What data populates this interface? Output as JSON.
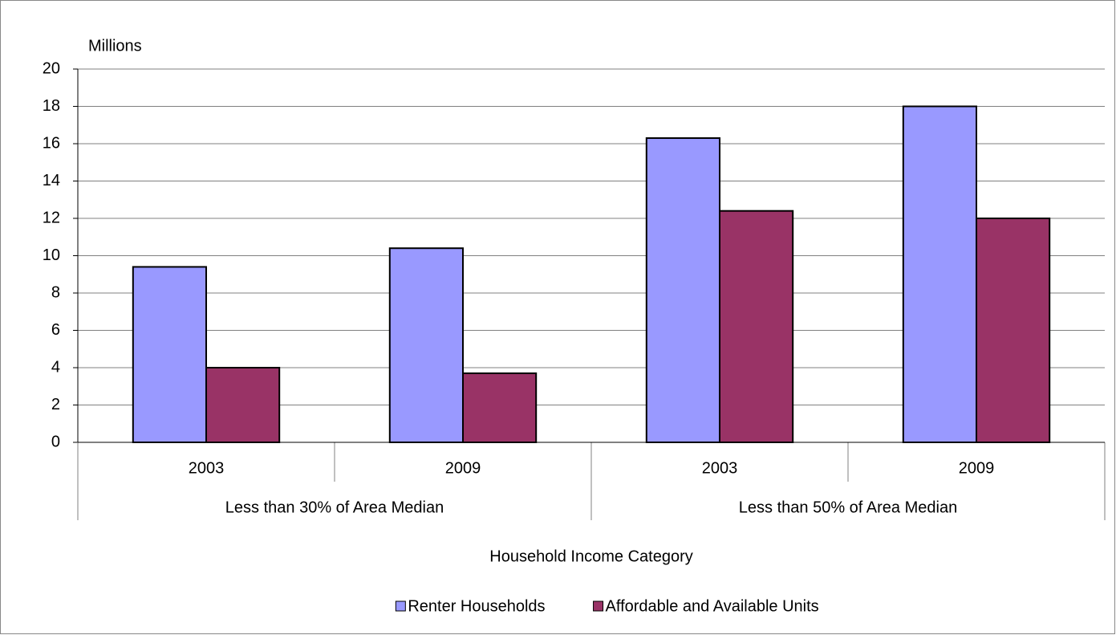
{
  "chart_data": {
    "type": "bar",
    "y_label": "Millions",
    "x_label": "Household Income Category",
    "groups": [
      {
        "name": "Less than 30% of Area Median",
        "categories": [
          "2003",
          "2009"
        ]
      },
      {
        "name": "Less than 50% of Area Median",
        "categories": [
          "2003",
          "2009"
        ]
      }
    ],
    "series": [
      {
        "name": "Renter Households",
        "color": "#9999ff",
        "values": [
          9.4,
          10.4,
          16.3,
          18.0
        ]
      },
      {
        "name": "Affordable and Available Units",
        "color": "#993366",
        "values": [
          4.0,
          3.7,
          12.4,
          12.0
        ]
      }
    ],
    "ylim": [
      0,
      20
    ],
    "yticks": [
      0,
      2,
      4,
      6,
      8,
      10,
      12,
      14,
      16,
      18,
      20
    ],
    "grid": true,
    "legend": "bottom"
  }
}
